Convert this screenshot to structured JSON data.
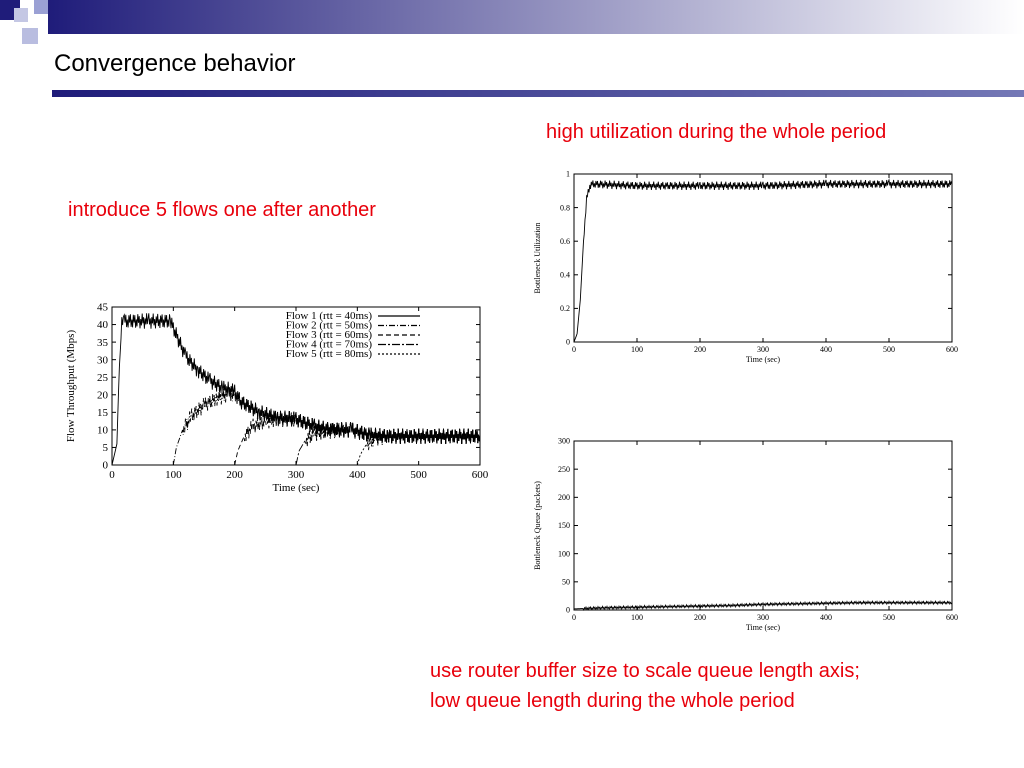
{
  "slide": {
    "title": "Convergence behavior",
    "notes": {
      "utilization": "high utilization during the whole period",
      "flows": "introduce 5 flows one after another",
      "queue_line1": "use router buffer size to scale queue length axis;",
      "queue_line2": "low queue length during the whole period"
    },
    "colors": {
      "accent": "#1f1c7a",
      "note": "#e8000b",
      "title": "#000000"
    }
  },
  "chart_data": [
    {
      "id": "throughput",
      "type": "line",
      "xlabel": "Time (sec)",
      "ylabel": "Flow Throughput (Mbps)",
      "xlim": [
        0,
        600
      ],
      "ylim": [
        0,
        45
      ],
      "xticks": [
        0,
        100,
        200,
        300,
        400,
        500,
        600
      ],
      "yticks": [
        0,
        5,
        10,
        15,
        20,
        25,
        30,
        35,
        40,
        45
      ],
      "grid": false,
      "legend_position": "top-right",
      "series": [
        {
          "name": "Flow 1 (rtt = 40ms)",
          "dash": "",
          "start": 0,
          "x": [
            0,
            8,
            12,
            16,
            20,
            30,
            60,
            95,
            100,
            120,
            140,
            160,
            180,
            200,
            210,
            240,
            270,
            300,
            330,
            360,
            390,
            400,
            420,
            450,
            500,
            550,
            600
          ],
          "y": [
            0,
            6,
            28,
            40,
            41,
            41,
            41,
            41,
            39,
            31,
            27,
            24,
            22,
            21,
            18,
            15,
            13.5,
            13,
            11,
            10,
            10,
            9.5,
            8.5,
            8.2,
            8.2,
            8.2,
            8.2
          ]
        },
        {
          "name": "Flow 2 (rtt = 50ms)",
          "dash": "6,2,1,2",
          "start": 100,
          "x": [
            100,
            105,
            115,
            130,
            150,
            170,
            190,
            200,
            210,
            240,
            270,
            300,
            330,
            360,
            390,
            400,
            420,
            450,
            500,
            550,
            600
          ],
          "y": [
            0,
            5,
            10,
            14,
            17,
            19,
            20,
            20,
            18,
            15,
            13.5,
            13,
            11,
            10,
            10,
            9.5,
            8.5,
            8.2,
            8.2,
            8.2,
            8.2
          ]
        },
        {
          "name": "Flow 3 (rtt = 60ms)",
          "dash": "5,3",
          "start": 200,
          "x": [
            200,
            205,
            215,
            230,
            250,
            270,
            290,
            300,
            330,
            360,
            390,
            400,
            420,
            450,
            500,
            550,
            600
          ],
          "y": [
            0,
            4,
            8,
            11,
            12.5,
            13,
            13,
            13,
            11,
            10,
            10,
            9.5,
            8.5,
            8.2,
            8.2,
            8.2,
            8.2
          ]
        },
        {
          "name": "Flow 4 (rtt = 70ms)",
          "dash": "8,2,2,2",
          "start": 300,
          "x": [
            300,
            305,
            315,
            330,
            350,
            370,
            390,
            400,
            420,
            450,
            500,
            550,
            600
          ],
          "y": [
            0,
            4,
            7,
            9,
            9.5,
            10,
            10,
            9.5,
            8.5,
            8.2,
            8.2,
            8.2,
            8.2
          ]
        },
        {
          "name": "Flow 5 (rtt = 80ms)",
          "dash": "2,2",
          "start": 400,
          "x": [
            400,
            405,
            415,
            430,
            450,
            500,
            550,
            600
          ],
          "y": [
            0,
            3,
            6,
            7.5,
            8.2,
            8.2,
            8.2,
            8.2
          ]
        }
      ]
    },
    {
      "id": "utilization",
      "type": "line",
      "xlabel": "Time (sec)",
      "ylabel": "Bottleneck Utilization",
      "xlim": [
        0,
        600
      ],
      "ylim": [
        0,
        1
      ],
      "xticks": [
        0,
        100,
        200,
        300,
        400,
        500,
        600
      ],
      "yticks": [
        0,
        0.2,
        0.4,
        0.6,
        0.8,
        1
      ],
      "grid": false,
      "series": [
        {
          "x": [
            0,
            5,
            10,
            15,
            20,
            25,
            30,
            100,
            200,
            300,
            400,
            500,
            600
          ],
          "y": [
            0,
            0.05,
            0.25,
            0.6,
            0.85,
            0.93,
            0.94,
            0.93,
            0.93,
            0.93,
            0.94,
            0.94,
            0.94
          ]
        }
      ]
    },
    {
      "id": "queue",
      "type": "line",
      "xlabel": "Time (sec)",
      "ylabel": "Bottleneck Queue (packets)",
      "xlim": [
        0,
        600
      ],
      "ylim": [
        0,
        300
      ],
      "xticks": [
        0,
        100,
        200,
        300,
        400,
        500,
        600
      ],
      "yticks": [
        0,
        50,
        100,
        150,
        200,
        250,
        300
      ],
      "grid": false,
      "series": [
        {
          "x": [
            0,
            50,
            100,
            150,
            200,
            250,
            300,
            350,
            400,
            450,
            500,
            550,
            600
          ],
          "y": [
            2,
            4,
            5,
            6,
            7,
            8,
            10,
            11,
            12,
            13,
            13,
            13,
            13
          ]
        }
      ]
    }
  ]
}
